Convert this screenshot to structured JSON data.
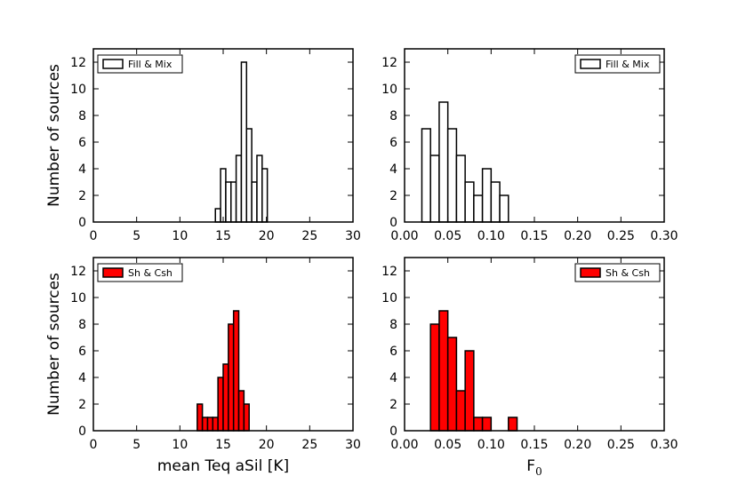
{
  "chart_data": [
    {
      "id": "top-left",
      "type": "bar",
      "subtype": "histogram",
      "legend": {
        "label": "Fill & Mix",
        "location": "upper-left",
        "fill": "#ffffff"
      },
      "bar_color": "#ffffff",
      "ylabel": "Number of sources",
      "xlabel": "",
      "xlim": [
        0,
        30
      ],
      "ylim": [
        0,
        13
      ],
      "xticks": [
        "0",
        "5",
        "10",
        "15",
        "20",
        "25",
        "30"
      ],
      "yticks": [
        "0",
        "2",
        "4",
        "6",
        "8",
        "10",
        "12"
      ],
      "bin_width": 0.6,
      "bins": [
        {
          "x": 14.1,
          "count": 1
        },
        {
          "x": 14.7,
          "count": 4
        },
        {
          "x": 15.3,
          "count": 3
        },
        {
          "x": 15.9,
          "count": 3
        },
        {
          "x": 16.5,
          "count": 5
        },
        {
          "x": 17.1,
          "count": 12
        },
        {
          "x": 17.7,
          "count": 7
        },
        {
          "x": 18.3,
          "count": 3
        },
        {
          "x": 18.9,
          "count": 5
        },
        {
          "x": 19.5,
          "count": 4
        }
      ]
    },
    {
      "id": "top-right",
      "type": "bar",
      "subtype": "histogram",
      "legend": {
        "label": "Fill & Mix",
        "location": "upper-right",
        "fill": "#ffffff"
      },
      "bar_color": "#ffffff",
      "ylabel": "",
      "xlabel": "",
      "xlim": [
        0,
        0.3
      ],
      "ylim": [
        0,
        13
      ],
      "xticks": [
        "0.00",
        "0.05",
        "0.10",
        "0.15",
        "0.20",
        "0.25",
        "0.30"
      ],
      "yticks": [
        "0",
        "2",
        "4",
        "6",
        "8",
        "10",
        "12"
      ],
      "bin_width": 0.01,
      "bins": [
        {
          "x": 0.02,
          "count": 7
        },
        {
          "x": 0.03,
          "count": 5
        },
        {
          "x": 0.04,
          "count": 9
        },
        {
          "x": 0.05,
          "count": 7
        },
        {
          "x": 0.06,
          "count": 5
        },
        {
          "x": 0.07,
          "count": 3
        },
        {
          "x": 0.08,
          "count": 2
        },
        {
          "x": 0.09,
          "count": 4
        },
        {
          "x": 0.1,
          "count": 3
        },
        {
          "x": 0.11,
          "count": 2
        }
      ]
    },
    {
      "id": "bottom-left",
      "type": "bar",
      "subtype": "histogram",
      "legend": {
        "label": "Sh & Csh",
        "location": "upper-left",
        "fill": "#ff0000"
      },
      "bar_color": "#ff0000",
      "ylabel": "Number of sources",
      "xlabel": "mean Teq aSil [K]",
      "xlim": [
        0,
        30
      ],
      "ylim": [
        0,
        13
      ],
      "xticks": [
        "0",
        "5",
        "10",
        "15",
        "20",
        "25",
        "30"
      ],
      "yticks": [
        "0",
        "2",
        "4",
        "6",
        "8",
        "10",
        "12"
      ],
      "bin_width": 0.6,
      "bins": [
        {
          "x": 12.0,
          "count": 2
        },
        {
          "x": 12.6,
          "count": 1
        },
        {
          "x": 13.2,
          "count": 1
        },
        {
          "x": 13.8,
          "count": 1
        },
        {
          "x": 14.4,
          "count": 4
        },
        {
          "x": 15.0,
          "count": 5
        },
        {
          "x": 15.6,
          "count": 8
        },
        {
          "x": 16.2,
          "count": 9
        },
        {
          "x": 16.8,
          "count": 3
        },
        {
          "x": 17.4,
          "count": 2
        }
      ]
    },
    {
      "id": "bottom-right",
      "type": "bar",
      "subtype": "histogram",
      "legend": {
        "label": "Sh & Csh",
        "location": "upper-right",
        "fill": "#ff0000"
      },
      "bar_color": "#ff0000",
      "ylabel": "",
      "xlabel": "F",
      "xlabel_subscript": "0",
      "xlim": [
        0,
        0.3
      ],
      "ylim": [
        0,
        13
      ],
      "xticks": [
        "0.00",
        "0.05",
        "0.10",
        "0.15",
        "0.20",
        "0.25",
        "0.30"
      ],
      "yticks": [
        "0",
        "2",
        "4",
        "6",
        "8",
        "10",
        "12"
      ],
      "bin_width": 0.01,
      "bins": [
        {
          "x": 0.03,
          "count": 8
        },
        {
          "x": 0.04,
          "count": 9
        },
        {
          "x": 0.05,
          "count": 7
        },
        {
          "x": 0.06,
          "count": 3
        },
        {
          "x": 0.07,
          "count": 6
        },
        {
          "x": 0.08,
          "count": 1
        },
        {
          "x": 0.09,
          "count": 1
        },
        {
          "x": 0.1,
          "count": 0
        },
        {
          "x": 0.11,
          "count": 0
        },
        {
          "x": 0.12,
          "count": 1
        }
      ]
    }
  ]
}
